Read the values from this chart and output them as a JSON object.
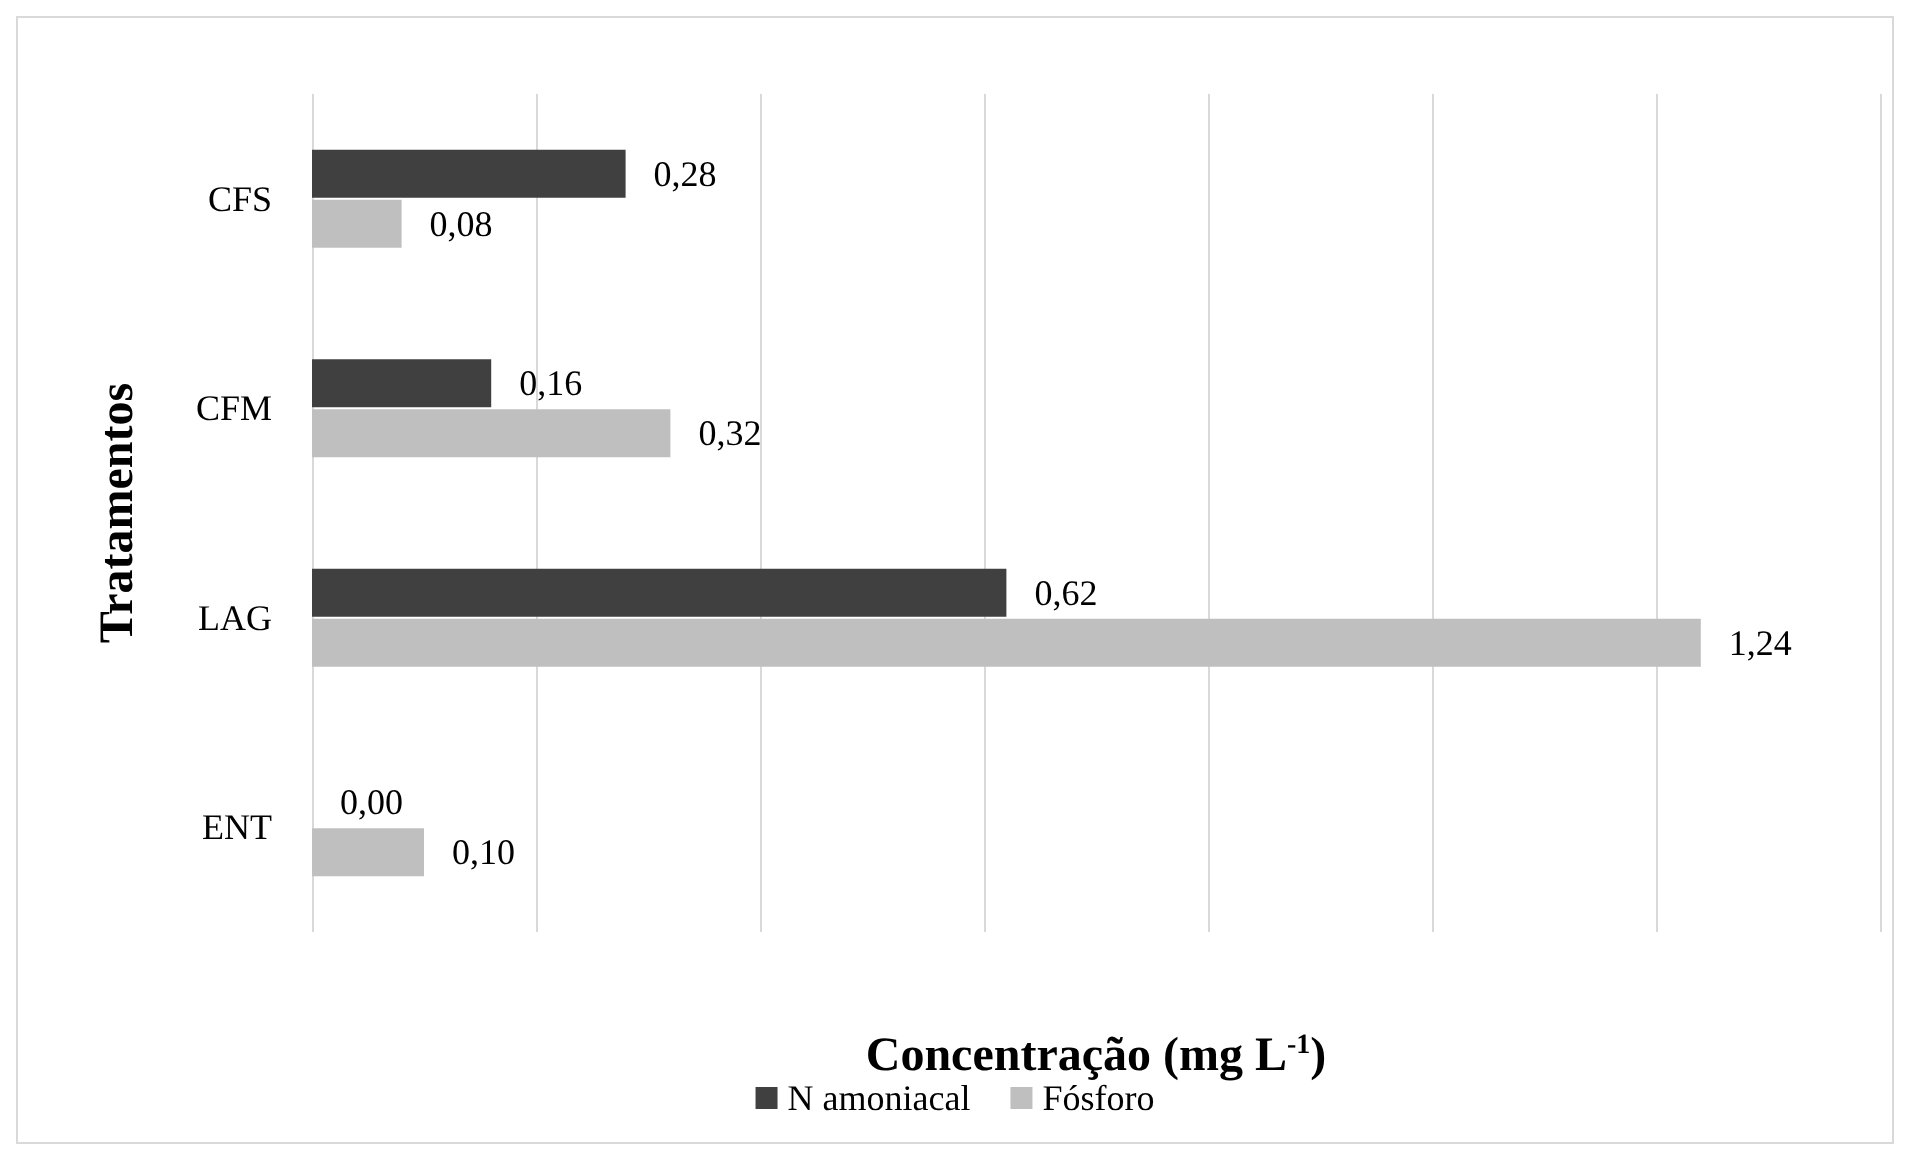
{
  "chart_data": {
    "type": "bar",
    "orientation": "horizontal",
    "xlabel": "Concentração (mg L$^{-1}$)",
    "ylabel": "Tratamentos",
    "categories": [
      "CFS",
      "CFM",
      "LAG",
      "ENT"
    ],
    "series": [
      {
        "name": "N amoniacal",
        "color": "#404040",
        "values": [
          0.28,
          0.16,
          0.62,
          0.0
        ],
        "value_labels": [
          "0,28",
          "0,16",
          "0,62",
          "0,00"
        ]
      },
      {
        "name": "Fósforo",
        "color": "#bfbfbf",
        "values": [
          0.08,
          0.32,
          1.24,
          0.1
        ],
        "value_labels": [
          "0,08",
          "0,32",
          "1,24",
          "0,10"
        ]
      }
    ],
    "xlim": [
      0,
      1.4
    ],
    "xticks": [
      {
        "value": 0,
        "label": null
      },
      {
        "value": 0.2,
        "label": null
      },
      {
        "value": 0.4,
        "label": null
      },
      {
        "value": 0.6,
        "label": null
      },
      {
        "value": 0.8,
        "label": null
      },
      {
        "value": 1.0,
        "label": null
      },
      {
        "value": 1.2,
        "label": null
      },
      {
        "value": 1.4,
        "label": null
      }
    ],
    "tick_labels": "y",
    "grid": "x",
    "legend": "bottom"
  }
}
